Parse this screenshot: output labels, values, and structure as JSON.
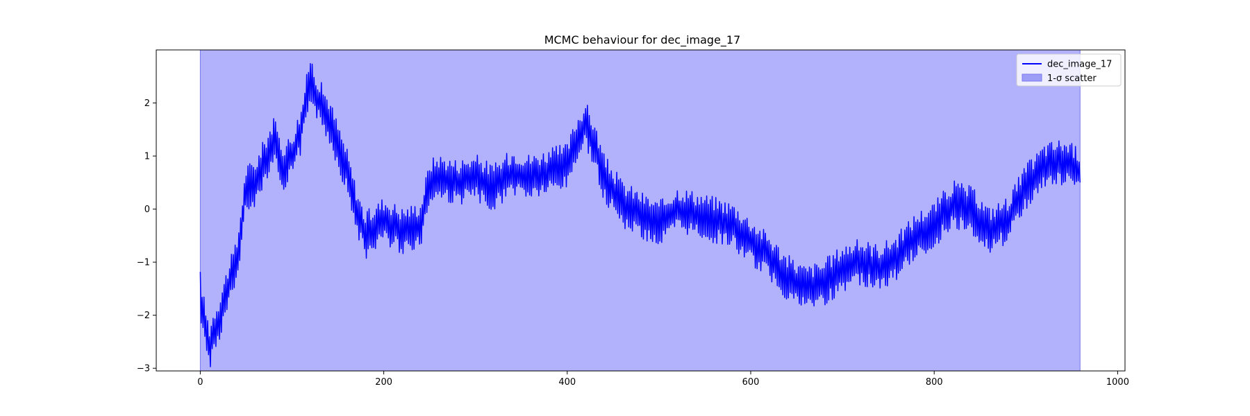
{
  "chart_data": {
    "type": "line",
    "title": "MCMC behaviour for dec_image_17",
    "xlabel": "",
    "ylabel": "",
    "xlim": [
      -48,
      1008
    ],
    "ylim": [
      -3.05,
      3.0
    ],
    "x_ticks": [
      0,
      200,
      400,
      600,
      800,
      1000
    ],
    "x_tick_labels": [
      "0",
      "200",
      "400",
      "600",
      "800",
      "1000"
    ],
    "y_ticks": [
      -3,
      -2,
      -1,
      0,
      1,
      2
    ],
    "y_tick_labels": [
      "−3",
      "−2",
      "−1",
      "0",
      "1",
      "2"
    ],
    "grid": false,
    "legend": {
      "position": "upper-right"
    },
    "band": {
      "name": "1-σ scatter",
      "x_range": [
        0,
        959
      ],
      "y_range": [
        -3.05,
        3.0
      ],
      "color": "#b1b1fc",
      "edge_color": "#7777ee"
    },
    "series": [
      {
        "name": "dec_image_17",
        "color": "#0000ff",
        "x_start": 0,
        "x_step": 1,
        "trend_x": [
          0,
          5,
          10,
          15,
          20,
          30,
          40,
          50,
          60,
          70,
          80,
          90,
          100,
          110,
          120,
          125,
          130,
          140,
          150,
          160,
          170,
          180,
          200,
          220,
          240,
          250,
          260,
          280,
          300,
          320,
          340,
          360,
          380,
          400,
          410,
          420,
          430,
          440,
          460,
          480,
          500,
          520,
          540,
          560,
          580,
          600,
          620,
          640,
          660,
          680,
          700,
          720,
          740,
          760,
          780,
          800,
          820,
          840,
          860,
          880,
          900,
          920,
          940,
          959
        ],
        "trend_y": [
          -1.6,
          -2.2,
          -2.6,
          -2.3,
          -2.1,
          -1.5,
          -1.0,
          0.4,
          0.5,
          0.9,
          1.3,
          0.8,
          1.0,
          1.5,
          2.5,
          2.2,
          2.0,
          1.7,
          1.2,
          0.7,
          0.0,
          -0.5,
          -0.2,
          -0.4,
          -0.3,
          0.5,
          0.6,
          0.5,
          0.6,
          0.4,
          0.7,
          0.6,
          0.7,
          0.8,
          1.3,
          1.6,
          1.2,
          0.6,
          0.1,
          -0.1,
          -0.3,
          0.0,
          -0.1,
          -0.2,
          -0.3,
          -0.6,
          -0.9,
          -1.3,
          -1.5,
          -1.4,
          -1.1,
          -1.0,
          -1.1,
          -0.9,
          -0.5,
          -0.3,
          0.1,
          0.0,
          -0.4,
          -0.2,
          0.4,
          0.8,
          0.9,
          0.7
        ],
        "noise_amplitude": 0.45
      }
    ]
  }
}
